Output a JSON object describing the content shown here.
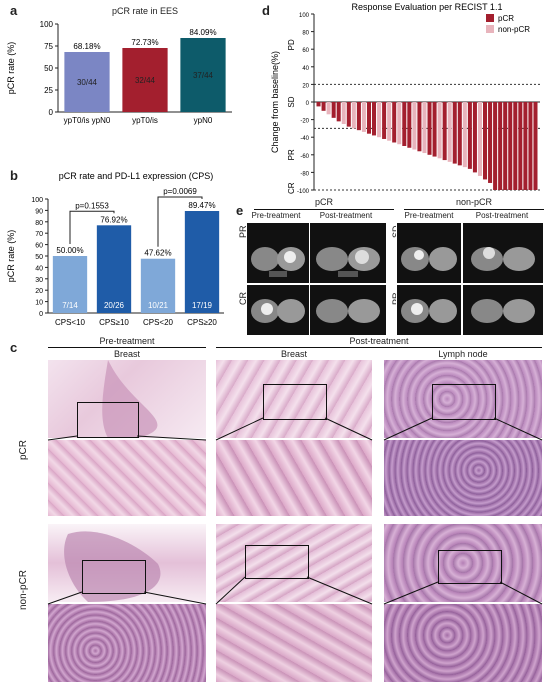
{
  "panels": {
    "a": "a",
    "b": "b",
    "c": "c",
    "d": "d",
    "e": "e"
  },
  "chart_data": [
    {
      "panel": "a",
      "type": "bar",
      "title": "pCR rate in EES",
      "ylabel": "pCR rate (%)",
      "ylim": [
        0,
        100
      ],
      "yticks": [
        "0",
        "25",
        "50",
        "75",
        "100"
      ],
      "categories": [
        "ypT0/is ypN0",
        "ypT0/is",
        "ypN0"
      ],
      "values": [
        68.18,
        72.73,
        84.09
      ],
      "value_labels": [
        "68.18%",
        "72.73%",
        "84.09%"
      ],
      "count_labels": [
        "30/44",
        "32/44",
        "37/44"
      ],
      "colors": [
        "#7b86c4",
        "#a31f2e",
        "#0d5b6a"
      ]
    },
    {
      "panel": "b",
      "type": "bar",
      "title": "pCR rate and PD-L1 expression (CPS)",
      "ylabel": "pCR rate (%)",
      "ylim": [
        0,
        100
      ],
      "yticks": [
        "0",
        "10",
        "20",
        "30",
        "40",
        "50",
        "60",
        "70",
        "80",
        "90",
        "100"
      ],
      "categories": [
        "CPS<10",
        "CPS≥10",
        "CPS<20",
        "CPS≥20"
      ],
      "values": [
        50.0,
        76.92,
        47.62,
        89.47
      ],
      "value_labels": [
        "50.00%",
        "76.92%",
        "47.62%",
        "89.47%"
      ],
      "count_labels": [
        "7/14",
        "20/26",
        "10/21",
        "17/19"
      ],
      "colors": [
        "#7fa8d8",
        "#1f5ca8",
        "#7fa8d8",
        "#1f5ca8"
      ],
      "pvalues": [
        "p=0.1553",
        "p=0.0069"
      ]
    },
    {
      "panel": "d",
      "type": "bar",
      "title": "Response Evaluation per RECIST 1.1",
      "ylabel": "Change from baseline(%)",
      "ylim": [
        -100,
        100
      ],
      "yticks": [
        "-100",
        "-80",
        "-60",
        "-40",
        "-20",
        "0",
        "20",
        "40",
        "60",
        "80",
        "100"
      ],
      "zone_labels": [
        "PD",
        "SD",
        "PR",
        "CR"
      ],
      "series": [
        {
          "name": "pCR",
          "color": "#a31f2e"
        },
        {
          "name": "non-pCR",
          "color": "#e8b4bc"
        }
      ],
      "values": [
        -5,
        -10,
        -14,
        -18,
        -22,
        -25,
        -28,
        -30,
        -32,
        -34,
        -36,
        -38,
        -40,
        -42,
        -44,
        -46,
        -48,
        -50,
        -52,
        -54,
        -56,
        -58,
        -60,
        -62,
        -64,
        -66,
        -68,
        -70,
        -72,
        -74,
        -76,
        -80,
        -84,
        -88,
        -92,
        -100,
        -100,
        -100,
        -100,
        -100,
        -100,
        -100,
        -100,
        -100
      ],
      "groups": [
        "p",
        "p",
        "n",
        "p",
        "p",
        "n",
        "p",
        "n",
        "p",
        "n",
        "p",
        "p",
        "n",
        "p",
        "n",
        "p",
        "n",
        "p",
        "p",
        "n",
        "p",
        "n",
        "p",
        "p",
        "n",
        "p",
        "n",
        "p",
        "p",
        "n",
        "p",
        "p",
        "n",
        "p",
        "p",
        "p",
        "p",
        "p",
        "p",
        "p",
        "p",
        "p",
        "p",
        "p"
      ]
    }
  ],
  "panel_e": {
    "group_pcr": "pCR",
    "group_nonpcr": "non-pCR",
    "pre": "Pre-treatment",
    "post": "Post-treatment",
    "rows_pcr": [
      "PR",
      "CR"
    ],
    "rows_nonpcr": [
      "SD",
      "PR"
    ]
  },
  "panel_c": {
    "pre_header": "Pre-treatment",
    "post_header": "Post-treatment",
    "col_breast": "Breast",
    "col_breast2": "Breast",
    "col_lymph": "Lymph node",
    "row_pcr": "pCR",
    "row_nonpcr": "non-pCR"
  }
}
